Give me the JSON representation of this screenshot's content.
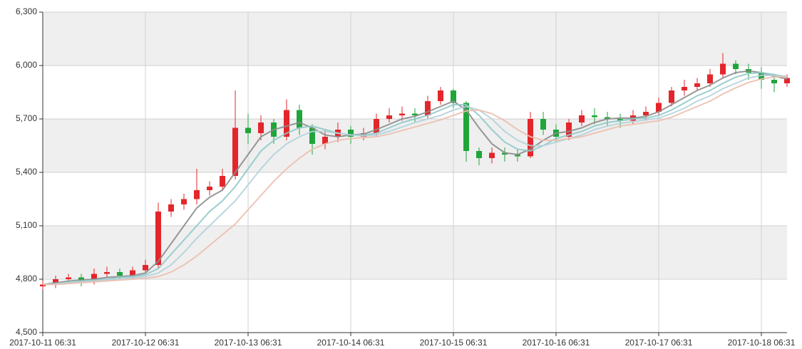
{
  "chart_data": {
    "type": "candlestick",
    "x": [
      "2017-10-11 06:31",
      "2017-10-11 09:31",
      "2017-10-11 12:31",
      "2017-10-11 15:31",
      "2017-10-11 18:31",
      "2017-10-11 21:31",
      "2017-10-12 00:31",
      "2017-10-12 03:31",
      "2017-10-12 06:31",
      "2017-10-12 09:31",
      "2017-10-12 12:31",
      "2017-10-12 15:31",
      "2017-10-12 18:31",
      "2017-10-12 21:31",
      "2017-10-13 00:31",
      "2017-10-13 03:31",
      "2017-10-13 06:31",
      "2017-10-13 09:31",
      "2017-10-13 12:31",
      "2017-10-13 15:31",
      "2017-10-13 18:31",
      "2017-10-13 21:31",
      "2017-10-14 00:31",
      "2017-10-14 03:31",
      "2017-10-14 06:31",
      "2017-10-14 09:31",
      "2017-10-14 12:31",
      "2017-10-14 15:31",
      "2017-10-14 18:31",
      "2017-10-14 21:31",
      "2017-10-15 00:31",
      "2017-10-15 03:31",
      "2017-10-15 06:31",
      "2017-10-15 09:31",
      "2017-10-15 12:31",
      "2017-10-15 15:31",
      "2017-10-15 18:31",
      "2017-10-15 21:31",
      "2017-10-16 00:31",
      "2017-10-16 03:31",
      "2017-10-16 06:31",
      "2017-10-16 09:31",
      "2017-10-16 12:31",
      "2017-10-16 15:31",
      "2017-10-16 18:31",
      "2017-10-16 21:31",
      "2017-10-17 00:31",
      "2017-10-17 03:31",
      "2017-10-17 06:31",
      "2017-10-17 09:31",
      "2017-10-17 12:31",
      "2017-10-17 15:31",
      "2017-10-17 18:31",
      "2017-10-17 21:31",
      "2017-10-18 00:31",
      "2017-10-18 03:31",
      "2017-10-18 06:31",
      "2017-10-18 09:31",
      "2017-10-18 12:31"
    ],
    "open": [
      4760,
      4770,
      4800,
      4810,
      4790,
      4830,
      4840,
      4820,
      4850,
      4880,
      5180,
      5220,
      5250,
      5300,
      5320,
      5380,
      5650,
      5620,
      5680,
      5600,
      5750,
      5650,
      5560,
      5600,
      5640,
      5600,
      5620,
      5700,
      5720,
      5730,
      5720,
      5800,
      5860,
      5790,
      5520,
      5480,
      5510,
      5500,
      5490,
      5700,
      5640,
      5600,
      5680,
      5720,
      5710,
      5700,
      5690,
      5720,
      5740,
      5790,
      5860,
      5880,
      5900,
      5950,
      6010,
      5980,
      5960,
      5920,
      5900
    ],
    "high": [
      4790,
      4820,
      4830,
      4830,
      4860,
      4870,
      4860,
      4870,
      4910,
      5230,
      5250,
      5280,
      5420,
      5350,
      5420,
      5860,
      5730,
      5720,
      5700,
      5810,
      5780,
      5670,
      5640,
      5680,
      5660,
      5650,
      5730,
      5760,
      5770,
      5760,
      5830,
      5880,
      5870,
      5800,
      5540,
      5540,
      5540,
      5530,
      5740,
      5740,
      5670,
      5700,
      5750,
      5760,
      5740,
      5730,
      5750,
      5770,
      5820,
      5880,
      5920,
      5930,
      5980,
      6070,
      6030,
      6010,
      5990,
      5950,
      5950
    ],
    "low": [
      4740,
      4750,
      4780,
      4760,
      4770,
      4810,
      4800,
      4800,
      4840,
      4860,
      5150,
      5190,
      5220,
      5270,
      5300,
      5360,
      5560,
      5580,
      5560,
      5580,
      5610,
      5500,
      5530,
      5570,
      5560,
      5580,
      5600,
      5680,
      5690,
      5680,
      5700,
      5780,
      5760,
      5460,
      5440,
      5450,
      5460,
      5460,
      5480,
      5610,
      5570,
      5580,
      5660,
      5670,
      5660,
      5650,
      5670,
      5690,
      5720,
      5770,
      5830,
      5860,
      5880,
      5930,
      5950,
      5920,
      5870,
      5850,
      5880
    ],
    "close": [
      4770,
      4800,
      4810,
      4790,
      4830,
      4840,
      4820,
      4850,
      4880,
      5180,
      5220,
      5250,
      5300,
      5320,
      5380,
      5650,
      5620,
      5680,
      5600,
      5750,
      5650,
      5560,
      5600,
      5640,
      5600,
      5620,
      5700,
      5720,
      5730,
      5720,
      5800,
      5860,
      5790,
      5520,
      5480,
      5510,
      5500,
      5490,
      5700,
      5640,
      5600,
      5680,
      5720,
      5710,
      5700,
      5690,
      5720,
      5740,
      5790,
      5860,
      5880,
      5900,
      5950,
      6010,
      5980,
      5960,
      5920,
      5900,
      5930
    ],
    "up_color": "#e3262b",
    "down_color": "#1fa53a",
    "series": [
      {
        "color": "#8c8c8c",
        "values": [
          4770,
          4780,
          4790,
          4795,
          4800,
          4810,
          4815,
          4820,
          4835,
          4900,
          5000,
          5100,
          5200,
          5260,
          5300,
          5400,
          5500,
          5600,
          5640,
          5660,
          5680,
          5650,
          5610,
          5600,
          5610,
          5615,
          5640,
          5670,
          5700,
          5715,
          5740,
          5770,
          5800,
          5750,
          5650,
          5560,
          5510,
          5500,
          5530,
          5580,
          5620,
          5630,
          5650,
          5680,
          5700,
          5705,
          5705,
          5715,
          5740,
          5780,
          5820,
          5860,
          5890,
          5930,
          5960,
          5970,
          5960,
          5940,
          5925
        ]
      },
      {
        "color": "#8fc9c9",
        "values": [
          4770,
          4775,
          4785,
          4790,
          4795,
          4800,
          4810,
          4815,
          4825,
          4860,
          4940,
          5020,
          5100,
          5180,
          5240,
          5320,
          5420,
          5520,
          5580,
          5620,
          5650,
          5660,
          5640,
          5620,
          5610,
          5610,
          5620,
          5650,
          5680,
          5700,
          5720,
          5750,
          5780,
          5780,
          5720,
          5640,
          5570,
          5530,
          5520,
          5550,
          5590,
          5610,
          5630,
          5660,
          5680,
          5690,
          5700,
          5705,
          5720,
          5750,
          5790,
          5830,
          5860,
          5900,
          5935,
          5955,
          5960,
          5950,
          5935
        ]
      },
      {
        "color": "#b4d2dc",
        "values": [
          4770,
          4772,
          4778,
          4785,
          4790,
          4795,
          4800,
          4808,
          4815,
          4835,
          4880,
          4950,
          5030,
          5100,
          5170,
          5240,
          5330,
          5420,
          5500,
          5560,
          5600,
          5630,
          5630,
          5620,
          5610,
          5605,
          5610,
          5630,
          5655,
          5680,
          5700,
          5720,
          5750,
          5770,
          5750,
          5700,
          5630,
          5580,
          5550,
          5550,
          5570,
          5590,
          5610,
          5640,
          5660,
          5675,
          5685,
          5695,
          5705,
          5730,
          5760,
          5800,
          5830,
          5870,
          5900,
          5930,
          5945,
          5945,
          5940
        ]
      },
      {
        "color": "#ebbfae",
        "values": [
          4770,
          4771,
          4775,
          4780,
          4785,
          4790,
          4795,
          4800,
          4805,
          4815,
          4840,
          4880,
          4930,
          4990,
          5050,
          5110,
          5190,
          5270,
          5350,
          5420,
          5480,
          5530,
          5560,
          5580,
          5590,
          5595,
          5600,
          5615,
          5635,
          5655,
          5675,
          5695,
          5720,
          5745,
          5750,
          5730,
          5690,
          5640,
          5600,
          5580,
          5580,
          5590,
          5600,
          5620,
          5640,
          5660,
          5670,
          5680,
          5690,
          5710,
          5740,
          5770,
          5800,
          5840,
          5875,
          5905,
          5925,
          5935,
          5940
        ]
      }
    ],
    "xlim": [
      "2017-10-11 06:31",
      "2017-10-18 12:31"
    ],
    "xticks": [
      "2017-10-11 06:31",
      "2017-10-12 06:31",
      "2017-10-13 06:31",
      "2017-10-14 06:31",
      "2017-10-15 06:31",
      "2017-10-16 06:31",
      "2017-10-17 06:31",
      "2017-10-18 06:31"
    ],
    "ylim": [
      4500,
      6300
    ],
    "yticks": [
      {
        "value": 4500,
        "label": "4,500"
      },
      {
        "value": 4800,
        "label": "4,800"
      },
      {
        "value": 5100,
        "label": "5,100"
      },
      {
        "value": 5400,
        "label": "5,400"
      },
      {
        "value": 5700,
        "label": "5,700"
      },
      {
        "value": 6000,
        "label": "6,000"
      },
      {
        "value": 6300,
        "label": "6,300"
      }
    ],
    "grid": true,
    "band_color": "#efefef"
  }
}
